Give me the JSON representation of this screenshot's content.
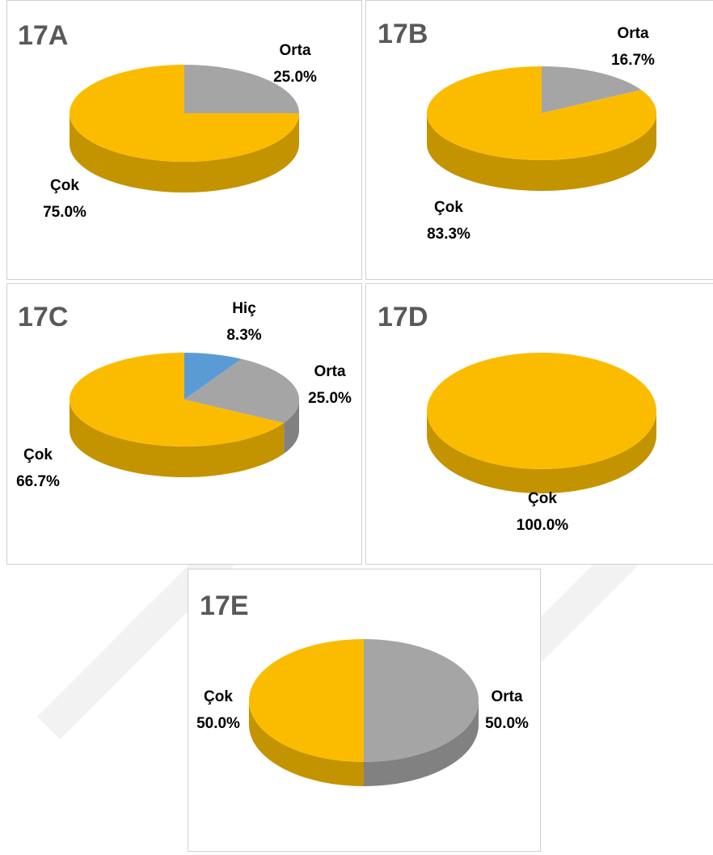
{
  "chart_data": [
    {
      "type": "pie",
      "title": "17A",
      "categories": [
        "Orta",
        "Çok"
      ],
      "values": [
        25.0,
        75.0
      ],
      "value_labels": [
        "25.0%",
        "75.0%"
      ],
      "colors": [
        "#a5a5a5",
        "#fbbc00"
      ]
    },
    {
      "type": "pie",
      "title": "17B",
      "categories": [
        "Orta",
        "Çok"
      ],
      "values": [
        16.7,
        83.3
      ],
      "value_labels": [
        "16.7%",
        "83.3%"
      ],
      "colors": [
        "#a5a5a5",
        "#fbbc00"
      ]
    },
    {
      "type": "pie",
      "title": "17C",
      "categories": [
        "Hiç",
        "Orta",
        "Çok"
      ],
      "values": [
        8.3,
        25.0,
        66.7
      ],
      "value_labels": [
        "8.3%",
        "25.0%",
        "66.7%"
      ],
      "colors": [
        "#5b9bd5",
        "#a5a5a5",
        "#fbbc00"
      ]
    },
    {
      "type": "pie",
      "title": "17D",
      "categories": [
        "Çok"
      ],
      "values": [
        100.0
      ],
      "value_labels": [
        "100.0%"
      ],
      "colors": [
        "#fbbc00"
      ]
    },
    {
      "type": "pie",
      "title": "17E",
      "categories": [
        "Orta",
        "Çok"
      ],
      "values": [
        50.0,
        50.0
      ],
      "value_labels": [
        "50.0%",
        "50.0%"
      ],
      "colors": [
        "#a5a5a5",
        "#fbbc00"
      ]
    }
  ]
}
